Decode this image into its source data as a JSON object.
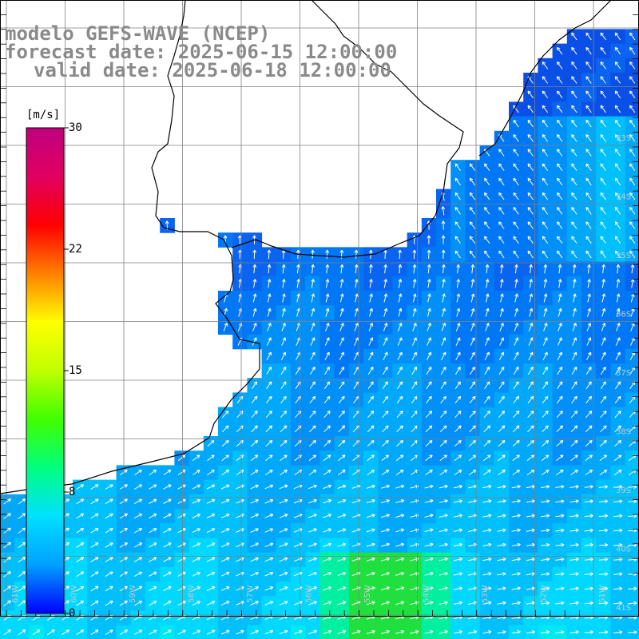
{
  "title": {
    "model": "modelo GEFS-WAVE (NCEP)",
    "forecast": "forecast date: 2025-06-15 12:00:00",
    "valid": "valid date: 2025-06-18 12:00:00"
  },
  "colorbar": {
    "unit": "[m/s]",
    "ticks": [
      "30",
      "22",
      "15",
      "8",
      "0"
    ],
    "stops": [
      "#0000ff",
      "#00a0ff",
      "#00e0ff",
      "#00ff80",
      "#40ff00",
      "#c0ff00",
      "#ffff00",
      "#ff8000",
      "#ff0000",
      "#e00060",
      "#c00080"
    ]
  },
  "grid": {
    "lat_labels": [
      "33S",
      "34S",
      "35S",
      "36S",
      "37S",
      "38S",
      "39S",
      "40S",
      "41S"
    ],
    "lon_labels": [
      "61W",
      "60W",
      "59W",
      "58W",
      "57W",
      "56W",
      "55W",
      "54W",
      "53W",
      "52W",
      "51W"
    ]
  },
  "colors": {
    "land": "#ffffff",
    "coast": "#000000",
    "gridline": "#808080",
    "title": "#8a8a8a",
    "arrow": "#ffffff"
  }
}
